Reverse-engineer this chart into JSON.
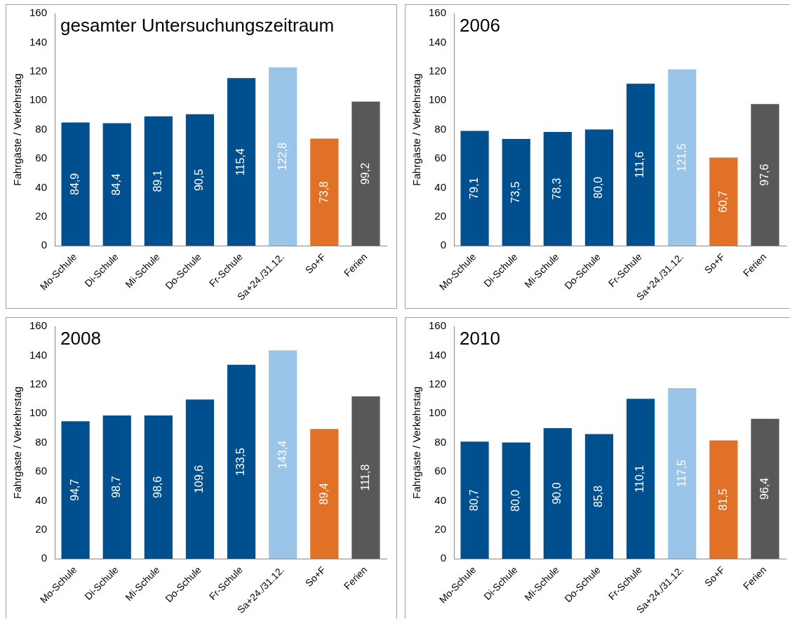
{
  "chart_data": [
    {
      "type": "bar",
      "title": "gesamter Untersuchungszeitraum",
      "ylabel": "Fahrgäste / Verkehrstag",
      "categories": [
        "Mo-Schule",
        "Di-Schule",
        "Mi-Schule",
        "Do-Schule",
        "Fr-Schule",
        "Sa+24./31.12.",
        "So+F",
        "Ferien"
      ],
      "values": [
        84.9,
        84.4,
        89.1,
        90.5,
        115.4,
        122.8,
        73.8,
        99.2
      ],
      "value_labels": [
        "84,9",
        "84,4",
        "89,1",
        "90,5",
        "115,4",
        "122,8",
        "73,8",
        "99,2"
      ],
      "colors": [
        "#00508f",
        "#00508f",
        "#00508f",
        "#00508f",
        "#00508f",
        "#9bc5e8",
        "#e07126",
        "#58585a"
      ],
      "ylim": [
        0,
        160
      ],
      "yticks": [
        0,
        20,
        40,
        60,
        80,
        100,
        120,
        140,
        160
      ],
      "grid": false,
      "legend": false
    },
    {
      "type": "bar",
      "title": "2006",
      "ylabel": "Fahrgäste / Verkehrstag",
      "categories": [
        "Mo-Schule",
        "Di-Schule",
        "Mi-Schule",
        "Do-Schule",
        "Fr-Schule",
        "Sa+24./31.12.",
        "So+F",
        "Ferien"
      ],
      "values": [
        79.1,
        73.5,
        78.3,
        80.0,
        111.6,
        121.5,
        60.7,
        97.6
      ],
      "value_labels": [
        "79,1",
        "73,5",
        "78,3",
        "80,0",
        "111,6",
        "121,5",
        "60,7",
        "97,6"
      ],
      "colors": [
        "#00508f",
        "#00508f",
        "#00508f",
        "#00508f",
        "#00508f",
        "#9bc5e8",
        "#e07126",
        "#58585a"
      ],
      "ylim": [
        0,
        160
      ],
      "yticks": [
        0,
        20,
        40,
        60,
        80,
        100,
        120,
        140,
        160
      ],
      "grid": false,
      "legend": false
    },
    {
      "type": "bar",
      "title": "2008",
      "ylabel": "Fahrgäste / Verkehrstag",
      "categories": [
        "Mo-Schule",
        "Di-Schule",
        "Mi-Schule",
        "Do-Schule",
        "Fr-Schule",
        "Sa+24./31.12.",
        "So+F",
        "Ferien"
      ],
      "values": [
        94.7,
        98.7,
        98.6,
        109.6,
        133.5,
        143.4,
        89.4,
        111.8
      ],
      "value_labels": [
        "94,7",
        "98,7",
        "98,6",
        "109,6",
        "133,5",
        "143,4",
        "89,4",
        "111,8"
      ],
      "colors": [
        "#00508f",
        "#00508f",
        "#00508f",
        "#00508f",
        "#00508f",
        "#9bc5e8",
        "#e07126",
        "#58585a"
      ],
      "ylim": [
        0,
        160
      ],
      "yticks": [
        0,
        20,
        40,
        60,
        80,
        100,
        120,
        140,
        160
      ],
      "grid": false,
      "legend": false
    },
    {
      "type": "bar",
      "title": "2010",
      "ylabel": "Fahrgäste / Verkehrstag",
      "categories": [
        "Mo-Schule",
        "Di-Schule",
        "Mi-Schule",
        "Do-Schule",
        "Fr-Schule",
        "Sa+24./31.12.",
        "So+F",
        "Ferien"
      ],
      "values": [
        80.7,
        80.0,
        90.0,
        85.8,
        110.1,
        117.5,
        81.5,
        96.4
      ],
      "value_labels": [
        "80,7",
        "80,0",
        "90,0",
        "85,8",
        "110,1",
        "117,5",
        "81,5",
        "96,4"
      ],
      "colors": [
        "#00508f",
        "#00508f",
        "#00508f",
        "#00508f",
        "#00508f",
        "#9bc5e8",
        "#e07126",
        "#58585a"
      ],
      "ylim": [
        0,
        160
      ],
      "yticks": [
        0,
        20,
        40,
        60,
        80,
        100,
        120,
        140,
        160
      ],
      "grid": false,
      "legend": false
    }
  ]
}
